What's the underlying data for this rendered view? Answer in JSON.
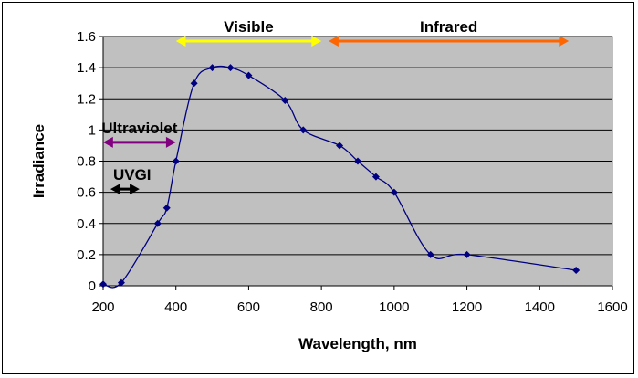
{
  "chart_data": {
    "type": "scatter",
    "title": "",
    "xlabel": "Wavelength, nm",
    "ylabel": "Irradiance",
    "xlim": [
      200,
      1600
    ],
    "ylim": [
      0,
      1.6
    ],
    "x_ticks": [
      "200",
      "400",
      "600",
      "800",
      "1000",
      "1200",
      "1400",
      "1600"
    ],
    "y_ticks": [
      "0",
      "0.2",
      "0.4",
      "0.6",
      "0.8",
      "1",
      "1.2",
      "1.4",
      "1.6"
    ],
    "grid": true,
    "legend": "none",
    "series": [
      {
        "x": [
          200,
          250,
          350,
          375,
          400,
          450,
          500,
          550,
          600,
          700,
          750,
          850,
          900,
          950,
          1000,
          1100,
          1200,
          1500
        ],
        "y": [
          0.01,
          0.02,
          0.4,
          0.5,
          0.8,
          1.3,
          1.4,
          1.4,
          1.35,
          1.19,
          1.0,
          0.9,
          0.8,
          0.7,
          0.6,
          0.2,
          0.2,
          0.1
        ]
      }
    ],
    "annotations": [
      {
        "label": "Visible",
        "x_start": 400,
        "x_end": 800,
        "y": 1.6,
        "color": "#ffff00"
      },
      {
        "label": "Infrared",
        "x_start": 820,
        "x_end": 1480,
        "y": 1.6,
        "color": "#ff6600"
      },
      {
        "label": "Ultraviolet",
        "x_start": 200,
        "x_end": 400,
        "y": 0.95,
        "color": "#800080"
      },
      {
        "label": "UVGI",
        "x_start": 220,
        "x_end": 300,
        "y": 0.65,
        "color": "#000000"
      }
    ],
    "colors": {
      "plot_background": "#c0c0c0",
      "series": "#000080",
      "gridline": "#000000"
    }
  }
}
